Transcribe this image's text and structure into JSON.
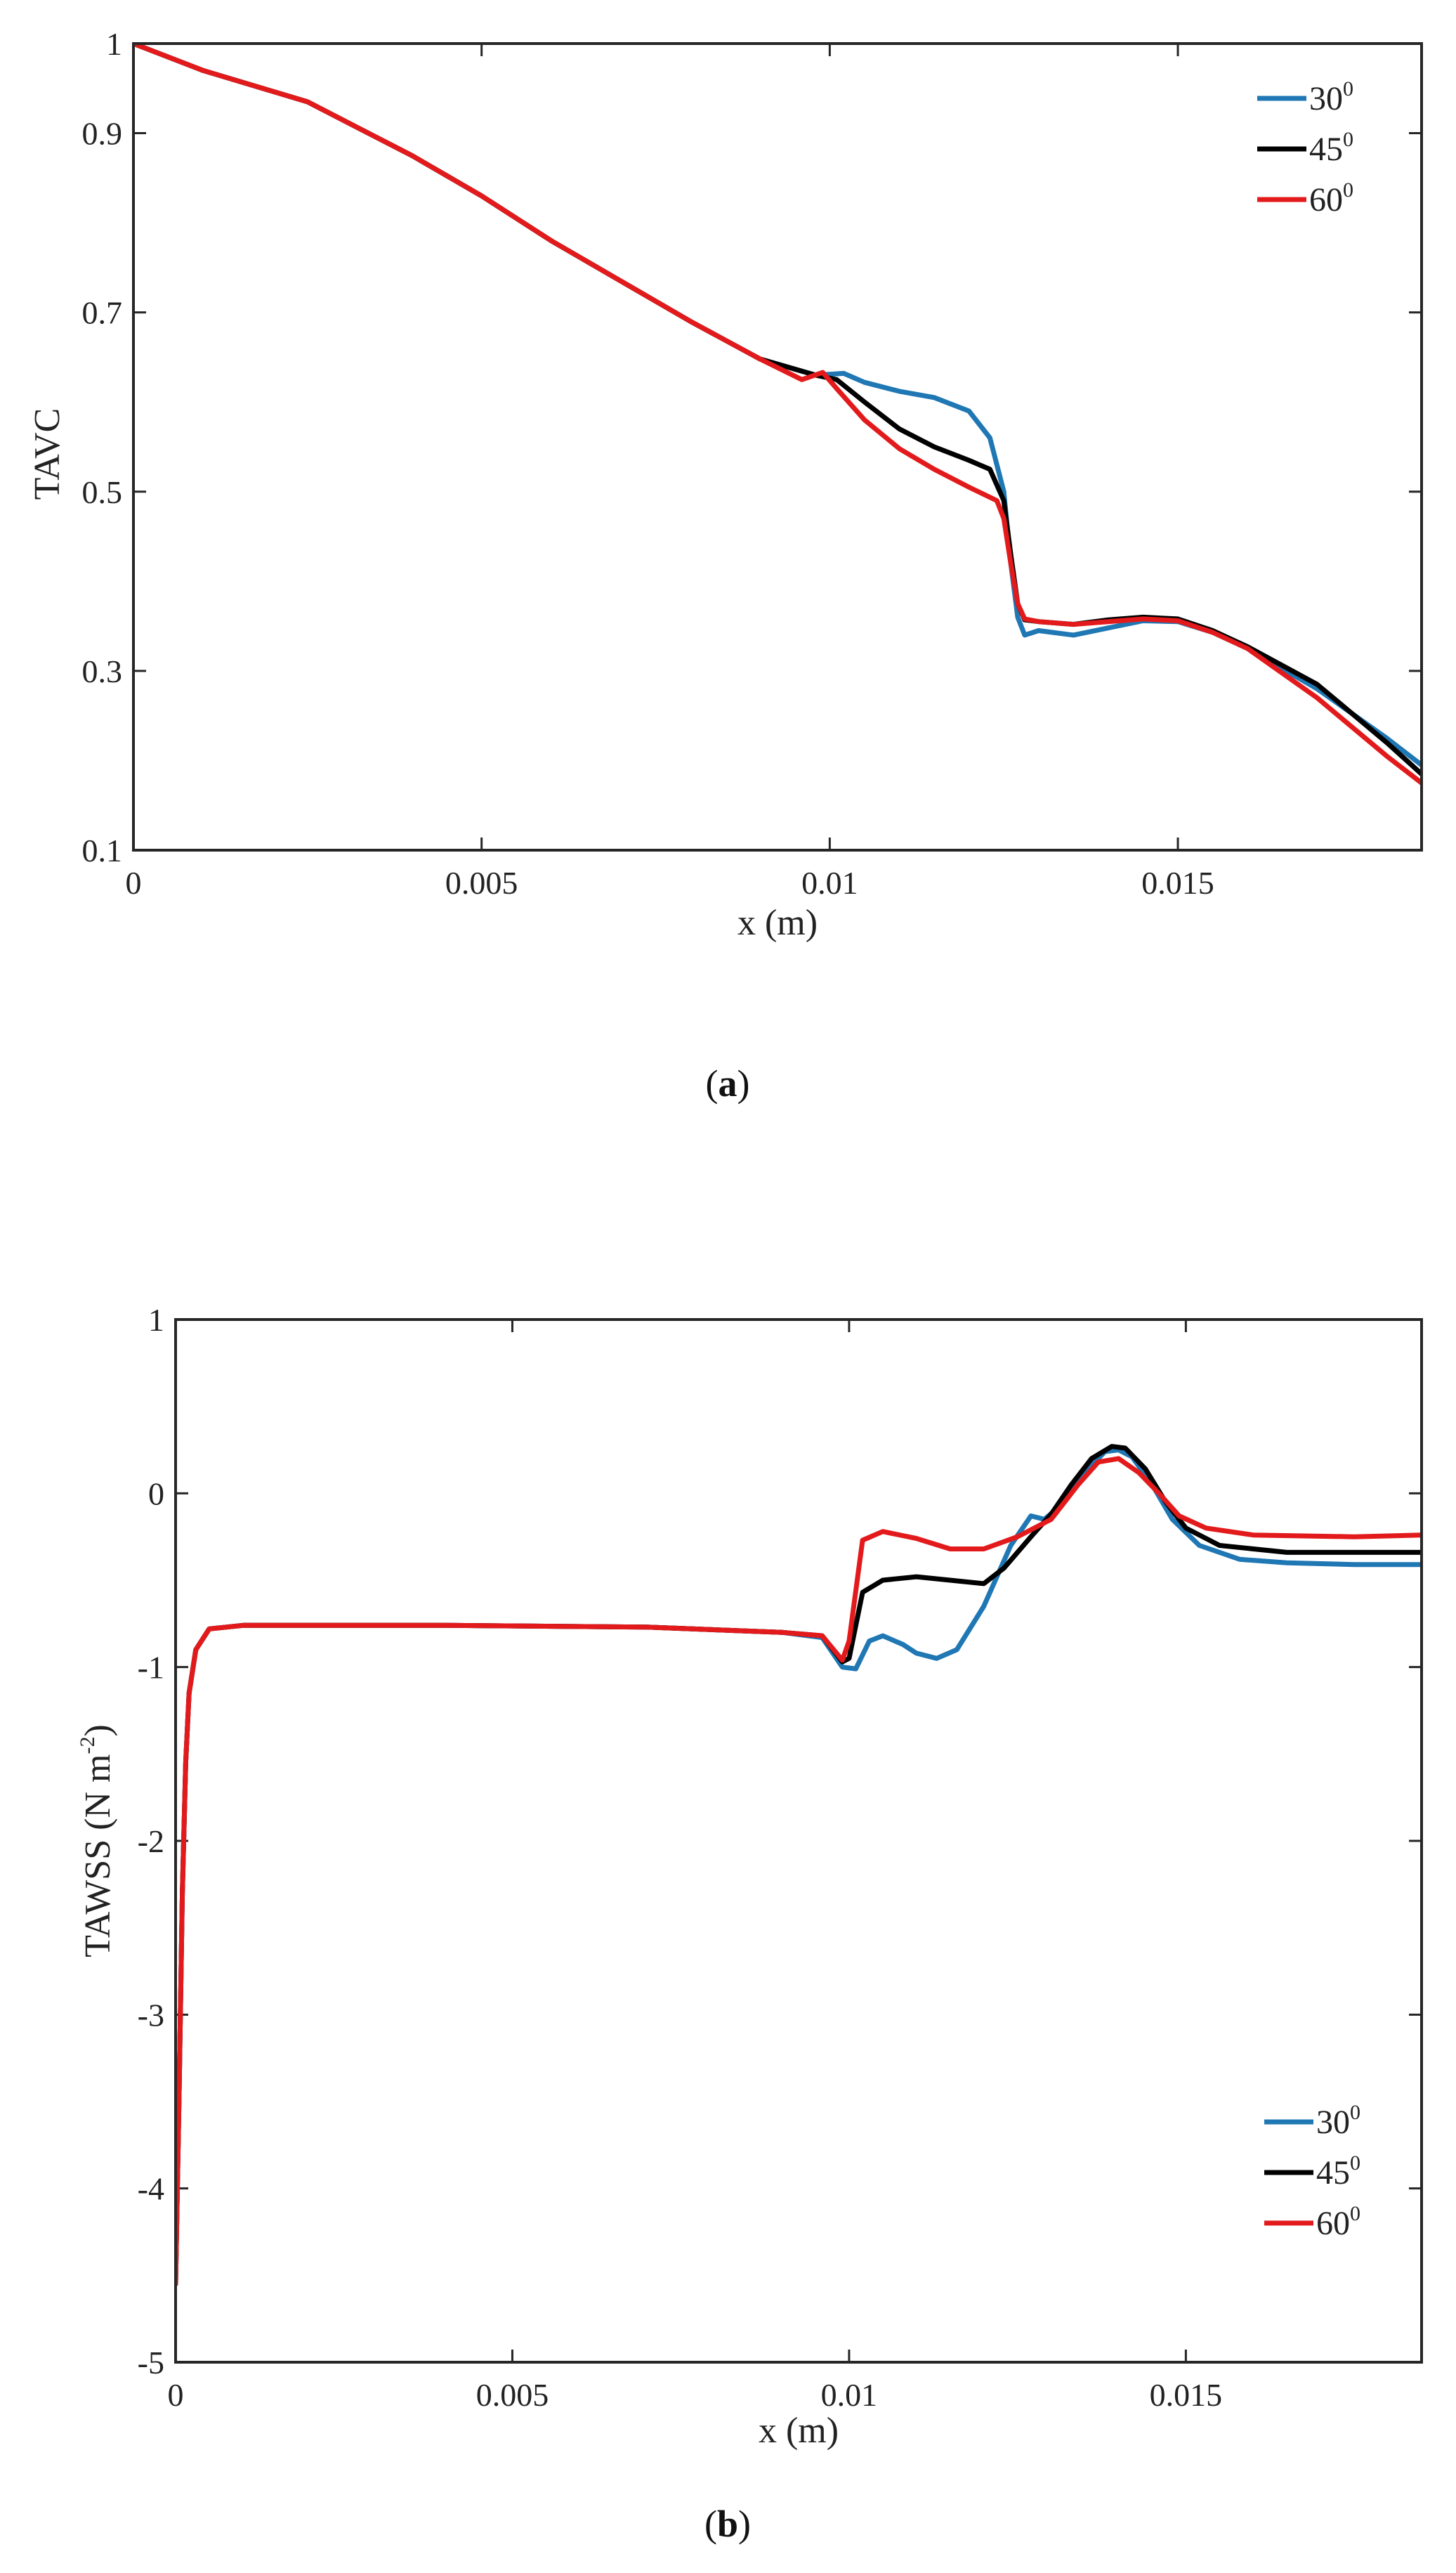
{
  "chart_data": [
    {
      "type": "line",
      "id": "a",
      "panel_label": "a",
      "xlabel": "x (m)",
      "ylabel": "TAVC",
      "xlim": [
        0,
        0.0185
      ],
      "ylim": [
        0.1,
        1.0
      ],
      "xticks": [
        0,
        0.005,
        0.01,
        0.015
      ],
      "xtick_labels": [
        "0",
        "0.005",
        "0.01",
        "0.015"
      ],
      "yticks": [
        0.1,
        0.3,
        0.5,
        0.7,
        0.9,
        1.0
      ],
      "ytick_labels": [
        "0.1",
        "0.3",
        "0.5",
        "0.7",
        "0.9",
        "1"
      ],
      "legend_position": "top-right",
      "series": [
        {
          "name": "30",
          "name_sup": "0",
          "color": "#1f77b4",
          "points": [
            [
              0,
              1.0
            ],
            [
              0.001,
              0.97
            ],
            [
              0.0025,
              0.935
            ],
            [
              0.004,
              0.875
            ],
            [
              0.005,
              0.83
            ],
            [
              0.006,
              0.78
            ],
            [
              0.007,
              0.735
            ],
            [
              0.008,
              0.69
            ],
            [
              0.009,
              0.648
            ],
            [
              0.0098,
              0.63
            ],
            [
              0.0102,
              0.632
            ],
            [
              0.0105,
              0.622
            ],
            [
              0.011,
              0.612
            ],
            [
              0.0115,
              0.605
            ],
            [
              0.012,
              0.59
            ],
            [
              0.0123,
              0.56
            ],
            [
              0.0125,
              0.5
            ],
            [
              0.0126,
              0.42
            ],
            [
              0.0127,
              0.36
            ],
            [
              0.0128,
              0.34
            ],
            [
              0.013,
              0.345
            ],
            [
              0.0135,
              0.34
            ],
            [
              0.014,
              0.348
            ],
            [
              0.0145,
              0.356
            ],
            [
              0.015,
              0.355
            ],
            [
              0.0155,
              0.343
            ],
            [
              0.016,
              0.325
            ],
            [
              0.017,
              0.28
            ],
            [
              0.018,
              0.225
            ],
            [
              0.0185,
              0.195
            ]
          ]
        },
        {
          "name": "45",
          "name_sup": "0",
          "color": "#000000",
          "points": [
            [
              0,
              1.0
            ],
            [
              0.001,
              0.97
            ],
            [
              0.0025,
              0.935
            ],
            [
              0.004,
              0.875
            ],
            [
              0.005,
              0.83
            ],
            [
              0.006,
              0.78
            ],
            [
              0.007,
              0.735
            ],
            [
              0.008,
              0.69
            ],
            [
              0.009,
              0.648
            ],
            [
              0.0098,
              0.63
            ],
            [
              0.0101,
              0.625
            ],
            [
              0.0105,
              0.6
            ],
            [
              0.011,
              0.57
            ],
            [
              0.0115,
              0.55
            ],
            [
              0.012,
              0.535
            ],
            [
              0.0123,
              0.525
            ],
            [
              0.0125,
              0.49
            ],
            [
              0.0126,
              0.43
            ],
            [
              0.0127,
              0.375
            ],
            [
              0.0128,
              0.357
            ],
            [
              0.013,
              0.355
            ],
            [
              0.0135,
              0.352
            ],
            [
              0.014,
              0.357
            ],
            [
              0.0145,
              0.36
            ],
            [
              0.015,
              0.358
            ],
            [
              0.0155,
              0.345
            ],
            [
              0.016,
              0.327
            ],
            [
              0.017,
              0.285
            ],
            [
              0.018,
              0.22
            ],
            [
              0.0185,
              0.185
            ]
          ]
        },
        {
          "name": "60",
          "name_sup": "0",
          "color": "#e31a1c",
          "points": [
            [
              0,
              1.0
            ],
            [
              0.001,
              0.97
            ],
            [
              0.0025,
              0.935
            ],
            [
              0.004,
              0.875
            ],
            [
              0.005,
              0.83
            ],
            [
              0.006,
              0.78
            ],
            [
              0.007,
              0.735
            ],
            [
              0.008,
              0.69
            ],
            [
              0.009,
              0.648
            ],
            [
              0.0096,
              0.625
            ],
            [
              0.0099,
              0.633
            ],
            [
              0.0101,
              0.615
            ],
            [
              0.0105,
              0.58
            ],
            [
              0.011,
              0.548
            ],
            [
              0.0115,
              0.525
            ],
            [
              0.012,
              0.505
            ],
            [
              0.0124,
              0.49
            ],
            [
              0.0125,
              0.47
            ],
            [
              0.0126,
              0.42
            ],
            [
              0.0127,
              0.375
            ],
            [
              0.0128,
              0.358
            ],
            [
              0.013,
              0.355
            ],
            [
              0.0135,
              0.352
            ],
            [
              0.014,
              0.355
            ],
            [
              0.0145,
              0.358
            ],
            [
              0.015,
              0.356
            ],
            [
              0.0155,
              0.343
            ],
            [
              0.016,
              0.325
            ],
            [
              0.017,
              0.27
            ],
            [
              0.018,
              0.205
            ],
            [
              0.0185,
              0.175
            ]
          ]
        }
      ]
    },
    {
      "type": "line",
      "id": "b",
      "panel_label": "b",
      "xlabel": "x (m)",
      "ylabel": "TAWSS (N m",
      "ylabel_sup": "-2",
      "ylabel_end": ")",
      "xlim": [
        0,
        0.0185
      ],
      "ylim": [
        -5,
        1
      ],
      "xticks": [
        0,
        0.005,
        0.01,
        0.015
      ],
      "xtick_labels": [
        "0",
        "0.005",
        "0.01",
        "0.015"
      ],
      "yticks": [
        -5,
        -4,
        -3,
        -2,
        -1,
        0,
        1
      ],
      "ytick_labels": [
        "-5",
        "-4",
        "-3",
        "-2",
        "-1",
        "0",
        "1"
      ],
      "legend_position": "bottom-right",
      "series": [
        {
          "name": "30",
          "name_sup": "0",
          "color": "#1f77b4",
          "points": [
            [
              0,
              -4.55
            ],
            [
              5e-05,
              -3.5
            ],
            [
              0.0001,
              -2.3
            ],
            [
              0.00015,
              -1.55
            ],
            [
              0.0002,
              -1.15
            ],
            [
              0.0003,
              -0.9
            ],
            [
              0.0005,
              -0.78
            ],
            [
              0.001,
              -0.76
            ],
            [
              0.004,
              -0.76
            ],
            [
              0.007,
              -0.77
            ],
            [
              0.009,
              -0.8
            ],
            [
              0.0096,
              -0.83
            ],
            [
              0.0099,
              -1.0
            ],
            [
              0.0101,
              -1.01
            ],
            [
              0.0103,
              -0.85
            ],
            [
              0.0105,
              -0.82
            ],
            [
              0.0108,
              -0.87
            ],
            [
              0.011,
              -0.92
            ],
            [
              0.0113,
              -0.95
            ],
            [
              0.0116,
              -0.9
            ],
            [
              0.012,
              -0.65
            ],
            [
              0.0124,
              -0.3
            ],
            [
              0.0127,
              -0.13
            ],
            [
              0.0129,
              -0.15
            ],
            [
              0.0132,
              -0.05
            ],
            [
              0.0135,
              0.12
            ],
            [
              0.0138,
              0.24
            ],
            [
              0.014,
              0.25
            ],
            [
              0.0142,
              0.21
            ],
            [
              0.0145,
              0.05
            ],
            [
              0.0148,
              -0.15
            ],
            [
              0.0152,
              -0.3
            ],
            [
              0.0158,
              -0.38
            ],
            [
              0.0165,
              -0.4
            ],
            [
              0.0175,
              -0.41
            ],
            [
              0.0185,
              -0.41
            ]
          ]
        },
        {
          "name": "45",
          "name_sup": "0",
          "color": "#000000",
          "points": [
            [
              0,
              -4.55
            ],
            [
              5e-05,
              -3.5
            ],
            [
              0.0001,
              -2.3
            ],
            [
              0.00015,
              -1.55
            ],
            [
              0.0002,
              -1.15
            ],
            [
              0.0003,
              -0.9
            ],
            [
              0.0005,
              -0.78
            ],
            [
              0.001,
              -0.76
            ],
            [
              0.004,
              -0.76
            ],
            [
              0.007,
              -0.77
            ],
            [
              0.009,
              -0.8
            ],
            [
              0.0096,
              -0.82
            ],
            [
              0.0099,
              -0.97
            ],
            [
              0.01,
              -0.95
            ],
            [
              0.0102,
              -0.57
            ],
            [
              0.0105,
              -0.5
            ],
            [
              0.011,
              -0.48
            ],
            [
              0.0115,
              -0.5
            ],
            [
              0.012,
              -0.52
            ],
            [
              0.0123,
              -0.43
            ],
            [
              0.0127,
              -0.25
            ],
            [
              0.013,
              -0.12
            ],
            [
              0.0133,
              0.05
            ],
            [
              0.0136,
              0.2
            ],
            [
              0.0139,
              0.27
            ],
            [
              0.0141,
              0.26
            ],
            [
              0.0144,
              0.14
            ],
            [
              0.0147,
              -0.05
            ],
            [
              0.015,
              -0.2
            ],
            [
              0.0155,
              -0.3
            ],
            [
              0.0165,
              -0.34
            ],
            [
              0.0185,
              -0.34
            ]
          ]
        },
        {
          "name": "60",
          "name_sup": "0",
          "color": "#e31a1c",
          "points": [
            [
              0,
              -4.55
            ],
            [
              5e-05,
              -3.5
            ],
            [
              0.0001,
              -2.3
            ],
            [
              0.00015,
              -1.55
            ],
            [
              0.0002,
              -1.15
            ],
            [
              0.0003,
              -0.9
            ],
            [
              0.0005,
              -0.78
            ],
            [
              0.001,
              -0.76
            ],
            [
              0.004,
              -0.76
            ],
            [
              0.007,
              -0.77
            ],
            [
              0.009,
              -0.8
            ],
            [
              0.0096,
              -0.82
            ],
            [
              0.0099,
              -0.96
            ],
            [
              0.01,
              -0.85
            ],
            [
              0.0102,
              -0.27
            ],
            [
              0.0105,
              -0.22
            ],
            [
              0.011,
              -0.26
            ],
            [
              0.0115,
              -0.32
            ],
            [
              0.012,
              -0.32
            ],
            [
              0.0125,
              -0.25
            ],
            [
              0.013,
              -0.15
            ],
            [
              0.0134,
              0.05
            ],
            [
              0.0137,
              0.18
            ],
            [
              0.014,
              0.2
            ],
            [
              0.0143,
              0.12
            ],
            [
              0.0146,
              0.0
            ],
            [
              0.0149,
              -0.13
            ],
            [
              0.0153,
              -0.2
            ],
            [
              0.016,
              -0.24
            ],
            [
              0.0175,
              -0.25
            ],
            [
              0.0185,
              -0.24
            ]
          ]
        }
      ]
    }
  ]
}
